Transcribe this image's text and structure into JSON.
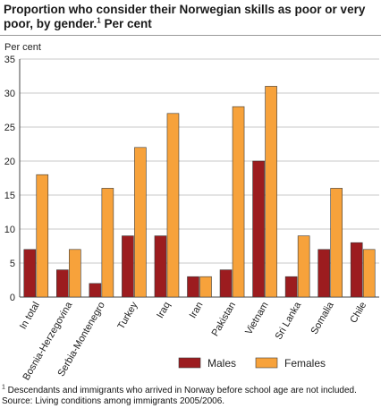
{
  "header": {
    "title": "Proportion who consider their Norwegian skills as poor or very poor, by gender.",
    "title_sup": "1",
    "title_suffix": " Per cent"
  },
  "footer": {
    "note_sup": "1",
    "note": " Descendants and immigrants who arrived in Norway before school age are not included.",
    "source": "Source: Living conditions among immigrants 2005/2006."
  },
  "chart_data": {
    "type": "bar",
    "title": "Proportion who consider their Norwegian skills as poor or very poor, by gender. Per cent",
    "ylabel": "Per cent",
    "xlabel": "",
    "ylim": [
      0,
      35
    ],
    "yticks": [
      0,
      5,
      10,
      15,
      20,
      25,
      30,
      35
    ],
    "grid": true,
    "legend_position": "bottom-right",
    "categories": [
      "In total",
      "Bosnia-Herzegovina",
      "Serbia-Montenegro",
      "Turkey",
      "Iraq",
      "Iran",
      "Pakistan",
      "Vietnam",
      "Sri Lanka",
      "Somalia",
      "Chile"
    ],
    "series": [
      {
        "name": "Males",
        "color": "#9c1c1f",
        "values": [
          7,
          4,
          2,
          9,
          9,
          3,
          4,
          20,
          3,
          7,
          8
        ]
      },
      {
        "name": "Females",
        "color": "#f7a23b",
        "values": [
          18,
          7,
          16,
          22,
          27,
          3,
          28,
          31,
          9,
          16,
          7
        ]
      }
    ]
  }
}
